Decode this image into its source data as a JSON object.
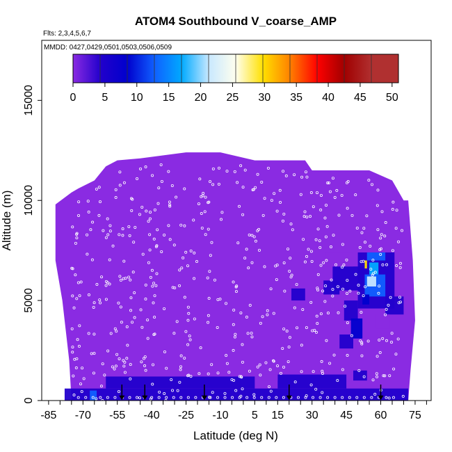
{
  "chart_data": {
    "type": "heatmap",
    "title": "ATOM4 Southbound V_coarse_AMP",
    "flights_label": "Flts: 2,3,4,5,6,7",
    "dates_label": "MMDD: 0427,0429,0501,0503,0506,0509",
    "xlabel": "Latitude (deg N)",
    "ylabel": "Altitude (m)",
    "xlim": [
      -88,
      82
    ],
    "ylim": [
      0,
      18000
    ],
    "x_ticks": [
      -85,
      -70,
      -55,
      -40,
      -25,
      -10,
      5,
      15,
      30,
      45,
      60,
      75
    ],
    "x_ticks_minor": [
      -85,
      -80,
      -75,
      -70,
      -65,
      -60,
      -55,
      -50,
      -45,
      -40,
      -35,
      -30,
      -25,
      -20,
      -15,
      -10,
      -5,
      0,
      5,
      10,
      15,
      20,
      25,
      30,
      35,
      40,
      45,
      50,
      55,
      60,
      65,
      70,
      75,
      80
    ],
    "y_ticks": [
      0,
      5000,
      10000,
      15000
    ],
    "colorbar": {
      "min": 0,
      "max": 51,
      "ticks": [
        0,
        5,
        10,
        15,
        20,
        25,
        30,
        35,
        40,
        45,
        50
      ],
      "colors": [
        "#8a2be2",
        "#2200cc",
        "#0000cd",
        "#1060ff",
        "#00aaff",
        "#c8e8ff",
        "#ffffee",
        "#ffe000",
        "#ff8000",
        "#ff0000",
        "#a00000",
        "#b03030"
      ]
    },
    "background_value": 1,
    "coverage_top": [
      {
        "lat": -82,
        "alt": 9800
      },
      {
        "lat": -75,
        "alt": 10400
      },
      {
        "lat": -72,
        "alt": 10600
      },
      {
        "lat": -65,
        "alt": 11000
      },
      {
        "lat": -60,
        "alt": 11700
      },
      {
        "lat": -55,
        "alt": 12000
      },
      {
        "lat": -45,
        "alt": 12100
      },
      {
        "lat": -25,
        "alt": 12400
      },
      {
        "lat": -10,
        "alt": 12400
      },
      {
        "lat": 5,
        "alt": 12000
      },
      {
        "lat": 15,
        "alt": 12000
      },
      {
        "lat": 27,
        "alt": 12000
      },
      {
        "lat": 30,
        "alt": 11500
      },
      {
        "lat": 55,
        "alt": 11500
      },
      {
        "lat": 65,
        "alt": 11000
      },
      {
        "lat": 70,
        "alt": 10000
      }
    ],
    "coverage_bottom": [
      {
        "lat": -72,
        "alt": 0
      },
      {
        "lat": 72,
        "alt": 0
      }
    ],
    "coverage_left": [
      {
        "lat": -82,
        "alt": 9800
      },
      {
        "lat": -82,
        "alt": 7000
      },
      {
        "lat": -79,
        "alt": 5000
      },
      {
        "lat": -76,
        "alt": 2000
      },
      {
        "lat": -75,
        "alt": 0
      }
    ],
    "coverage_right": [
      {
        "lat": 72,
        "alt": 10000
      },
      {
        "lat": 74,
        "alt": 7000
      },
      {
        "lat": 75,
        "alt": 4000
      },
      {
        "lat": 73,
        "alt": 1500
      },
      {
        "lat": 72,
        "alt": 0
      }
    ],
    "enhanced_cells": [
      {
        "lat0": -78,
        "lat1": 72,
        "alt0": 0,
        "alt1": 600,
        "v": 6
      },
      {
        "lat0": -60,
        "lat1": 5,
        "alt0": 600,
        "alt1": 1200,
        "v": 5
      },
      {
        "lat0": 15,
        "lat1": 45,
        "alt0": 600,
        "alt1": 1300,
        "v": 5
      },
      {
        "lat0": -67,
        "lat1": -64,
        "alt0": 0,
        "alt1": 500,
        "v": 14
      },
      {
        "lat0": 35,
        "lat1": 42,
        "alt0": 5300,
        "alt1": 6000,
        "v": 5
      },
      {
        "lat0": 21,
        "lat1": 27,
        "alt0": 5000,
        "alt1": 5600,
        "v": 6
      },
      {
        "lat0": 39,
        "lat1": 56,
        "alt0": 5500,
        "alt1": 6700,
        "v": 6
      },
      {
        "lat0": 44,
        "lat1": 50,
        "alt0": 4000,
        "alt1": 5000,
        "v": 7
      },
      {
        "lat0": 47,
        "lat1": 52,
        "alt0": 3100,
        "alt1": 4100,
        "v": 10
      },
      {
        "lat0": 42,
        "lat1": 48,
        "alt0": 2600,
        "alt1": 3300,
        "v": 7
      },
      {
        "lat0": 50,
        "lat1": 66,
        "alt0": 4600,
        "alt1": 7400,
        "v": 6
      },
      {
        "lat0": 53,
        "lat1": 62,
        "alt0": 5200,
        "alt1": 6300,
        "v": 14
      },
      {
        "lat0": 54,
        "lat1": 58,
        "alt0": 5700,
        "alt1": 6200,
        "v": 22
      },
      {
        "lat0": 55,
        "lat1": 59,
        "alt0": 6300,
        "alt1": 6900,
        "v": 18
      },
      {
        "lat0": 53,
        "lat1": 54,
        "alt0": 6600,
        "alt1": 7000,
        "v": 33
      },
      {
        "lat0": 54,
        "lat1": 62,
        "alt0": 7000,
        "alt1": 7400,
        "v": 14
      },
      {
        "lat0": 52,
        "lat1": 55,
        "alt0": 4800,
        "alt1": 5300,
        "v": 12
      },
      {
        "lat0": 62,
        "lat1": 70,
        "alt0": 4300,
        "alt1": 5200,
        "v": 5
      },
      {
        "lat0": 58,
        "lat1": 64,
        "alt0": 3600,
        "alt1": 4300,
        "v": 4
      },
      {
        "lat0": 36,
        "lat1": 48,
        "alt0": 6700,
        "alt1": 7400,
        "v": 4
      },
      {
        "lat0": 48,
        "lat1": 54,
        "alt0": 1000,
        "alt1": 1500,
        "v": 5
      },
      {
        "lat0": 8,
        "lat1": 15,
        "alt0": 1000,
        "alt1": 1300,
        "v": 4
      }
    ],
    "sample_arrows_lat": [
      -53,
      -43,
      -17,
      20,
      60
    ],
    "sample_points_density": 550,
    "seed": 7
  }
}
